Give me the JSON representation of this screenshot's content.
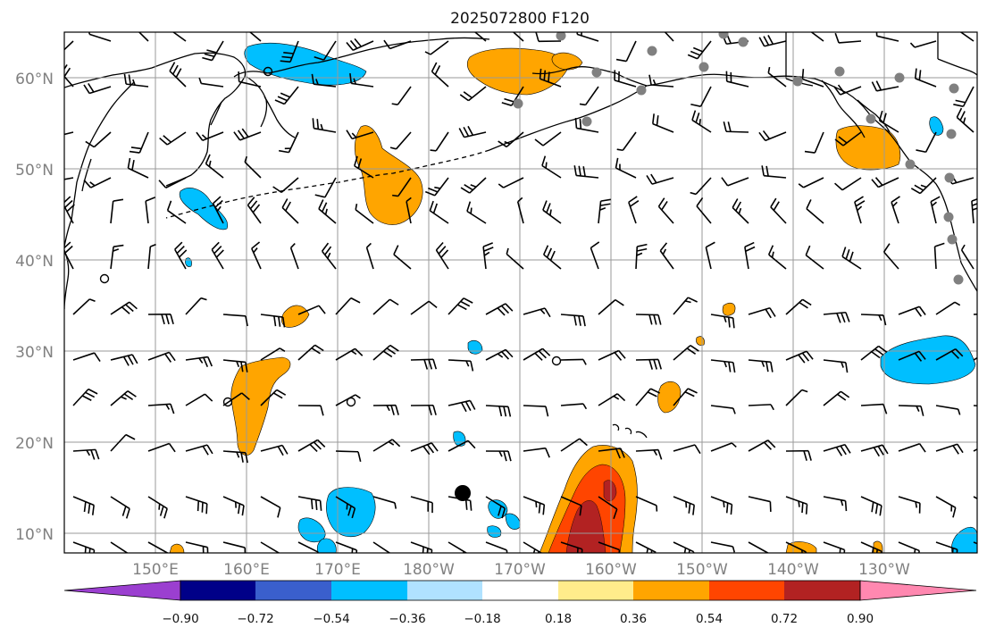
{
  "title": "2025072800 F120",
  "lat_labels": [
    "60°N",
    "50°N",
    "40°N",
    "30°N",
    "20°N",
    "10°N"
  ],
  "lon_labels": [
    "150°E",
    "160°E",
    "170°E",
    "180°W",
    "170°W",
    "160°W",
    "150°W",
    "140°W",
    "130°W"
  ],
  "colorbar": {
    "ticks": [
      "−0.90",
      "−0.72",
      "−0.54",
      "−0.36",
      "−0.18",
      "0.18",
      "0.36",
      "0.54",
      "0.72",
      "0.90"
    ],
    "colors": [
      "#9b3fd0",
      "#000088",
      "#3a5fcd",
      "#00bfff",
      "#b0e2ff",
      "#ffffff",
      "#ffec8b",
      "#ffa500",
      "#ff4500",
      "#b22222",
      "#ff88b0"
    ]
  },
  "colors": {
    "positive_fill": "#ffa500",
    "strong_positive": "#ff4500",
    "very_strong_positive": "#b22222",
    "negative_fill": "#00bfff",
    "station_marker": "#808080"
  }
}
